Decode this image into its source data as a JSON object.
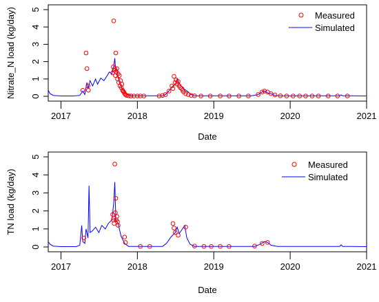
{
  "chart_data": [
    {
      "type": "line",
      "xlabel": "Date",
      "ylabel": "Nitrate_N load (kg/day)",
      "xlim": [
        "2016-11-01",
        "2021-01-01"
      ],
      "ylim": [
        0,
        5
      ],
      "x_ticks": [
        "2017",
        "2018",
        "2019",
        "2020",
        "2021"
      ],
      "y_ticks": [
        "0",
        "1",
        "2",
        "3",
        "4",
        "5"
      ],
      "legend": {
        "placement": "top-right",
        "entries": [
          "Measured",
          "Simulated"
        ]
      },
      "series": [
        {
          "name": "Simulated",
          "style": "line",
          "color": "#0000ff",
          "points": [
            [
              "2016-11-01",
              0.35
            ],
            [
              "2016-11-10",
              0.15
            ],
            [
              "2016-11-25",
              0.05
            ],
            [
              "2017-01-01",
              0.02
            ],
            [
              "2017-03-01",
              0.02
            ],
            [
              "2017-04-01",
              0.05
            ],
            [
              "2017-04-15",
              0.3
            ],
            [
              "2017-04-25",
              0.1
            ],
            [
              "2017-05-05",
              0.8
            ],
            [
              "2017-05-10",
              0.45
            ],
            [
              "2017-05-20",
              0.9
            ],
            [
              "2017-06-01",
              0.6
            ],
            [
              "2017-06-15",
              1.0
            ],
            [
              "2017-06-25",
              0.7
            ],
            [
              "2017-07-10",
              1.05
            ],
            [
              "2017-07-25",
              0.9
            ],
            [
              "2017-08-10",
              1.2
            ],
            [
              "2017-08-20",
              1.4
            ],
            [
              "2017-09-01",
              1.3
            ],
            [
              "2017-09-10",
              1.7
            ],
            [
              "2017-09-15",
              2.2
            ],
            [
              "2017-09-20",
              1.4
            ],
            [
              "2017-09-25",
              1.6
            ],
            [
              "2017-10-01",
              1.1
            ],
            [
              "2017-10-10",
              0.7
            ],
            [
              "2017-10-20",
              0.45
            ],
            [
              "2017-11-01",
              0.25
            ],
            [
              "2017-11-15",
              0.1
            ],
            [
              "2017-12-01",
              0.03
            ],
            [
              "2018-05-01",
              0.03
            ],
            [
              "2018-05-15",
              0.1
            ],
            [
              "2018-06-01",
              0.3
            ],
            [
              "2018-06-15",
              0.55
            ],
            [
              "2018-07-01",
              0.7
            ],
            [
              "2018-07-10",
              1.0
            ],
            [
              "2018-07-20",
              0.75
            ],
            [
              "2018-08-01",
              0.55
            ],
            [
              "2018-08-15",
              0.4
            ],
            [
              "2018-09-01",
              0.25
            ],
            [
              "2018-09-15",
              0.1
            ],
            [
              "2018-10-01",
              0.03
            ],
            [
              "2019-07-01",
              0.03
            ],
            [
              "2019-08-01",
              0.1
            ],
            [
              "2019-08-20",
              0.25
            ],
            [
              "2019-09-01",
              0.3
            ],
            [
              "2019-09-15",
              0.2
            ],
            [
              "2019-10-01",
              0.15
            ],
            [
              "2019-10-20",
              0.05
            ],
            [
              "2019-11-15",
              0.03
            ],
            [
              "2020-08-25",
              0.03
            ],
            [
              "2020-09-01",
              0.08
            ],
            [
              "2020-09-08",
              0.03
            ],
            [
              "2021-01-01",
              0.02
            ]
          ]
        },
        {
          "name": "Measured",
          "style": "points",
          "color": "#ff0000",
          "points": [
            [
              "2017-04-15",
              0.35
            ],
            [
              "2017-05-01",
              2.5
            ],
            [
              "2017-05-05",
              1.6
            ],
            [
              "2017-05-10",
              0.6
            ],
            [
              "2017-05-12",
              0.35
            ],
            [
              "2017-09-10",
              4.35
            ],
            [
              "2017-09-15",
              1.6
            ],
            [
              "2017-09-20",
              2.5
            ],
            [
              "2017-09-05",
              1.35
            ],
            [
              "2017-09-08",
              1.7
            ],
            [
              "2017-09-12",
              1.5
            ],
            [
              "2017-09-18",
              1.2
            ],
            [
              "2017-09-22",
              1.4
            ],
            [
              "2017-09-25",
              1.6
            ],
            [
              "2017-09-28",
              1.0
            ],
            [
              "2017-10-01",
              1.3
            ],
            [
              "2017-10-04",
              0.8
            ],
            [
              "2017-10-07",
              1.2
            ],
            [
              "2017-10-10",
              0.6
            ],
            [
              "2017-10-13",
              0.9
            ],
            [
              "2017-10-16",
              0.5
            ],
            [
              "2017-10-19",
              0.7
            ],
            [
              "2017-10-22",
              0.35
            ],
            [
              "2017-10-25",
              0.3
            ],
            [
              "2017-10-28",
              0.25
            ],
            [
              "2017-11-01",
              0.15
            ],
            [
              "2017-11-05",
              0.1
            ],
            [
              "2017-11-10",
              0.05
            ],
            [
              "2017-11-20",
              0.03
            ],
            [
              "2017-12-01",
              0.02
            ],
            [
              "2017-12-15",
              0.02
            ],
            [
              "2018-01-01",
              0.02
            ],
            [
              "2018-01-15",
              0.02
            ],
            [
              "2018-02-01",
              0.02
            ],
            [
              "2018-04-15",
              0.02
            ],
            [
              "2018-05-01",
              0.05
            ],
            [
              "2018-05-15",
              0.1
            ],
            [
              "2018-06-01",
              0.3
            ],
            [
              "2018-06-15",
              0.6
            ],
            [
              "2018-06-20",
              0.45
            ],
            [
              "2018-06-25",
              1.15
            ],
            [
              "2018-07-01",
              0.8
            ],
            [
              "2018-07-05",
              0.95
            ],
            [
              "2018-07-10",
              0.7
            ],
            [
              "2018-07-15",
              0.85
            ],
            [
              "2018-07-20",
              0.6
            ],
            [
              "2018-07-25",
              0.5
            ],
            [
              "2018-08-01",
              0.45
            ],
            [
              "2018-08-05",
              0.35
            ],
            [
              "2018-08-10",
              0.25
            ],
            [
              "2018-08-20",
              0.15
            ],
            [
              "2018-09-01",
              0.1
            ],
            [
              "2018-09-15",
              0.05
            ],
            [
              "2018-10-01",
              0.03
            ],
            [
              "2018-11-01",
              0.02
            ],
            [
              "2018-12-15",
              0.02
            ],
            [
              "2019-02-01",
              0.02
            ],
            [
              "2019-03-15",
              0.02
            ],
            [
              "2019-05-01",
              0.02
            ],
            [
              "2019-06-15",
              0.02
            ],
            [
              "2019-08-01",
              0.1
            ],
            [
              "2019-08-20",
              0.25
            ],
            [
              "2019-09-01",
              0.3
            ],
            [
              "2019-09-15",
              0.25
            ],
            [
              "2019-10-01",
              0.15
            ],
            [
              "2019-10-20",
              0.08
            ],
            [
              "2019-11-15",
              0.03
            ],
            [
              "2019-12-15",
              0.02
            ],
            [
              "2020-01-15",
              0.02
            ],
            [
              "2020-02-15",
              0.02
            ],
            [
              "2020-03-15",
              0.02
            ],
            [
              "2020-04-15",
              0.02
            ],
            [
              "2020-05-15",
              0.02
            ],
            [
              "2020-07-01",
              0.02
            ],
            [
              "2020-08-15",
              0.02
            ],
            [
              "2020-10-01",
              0.02
            ]
          ]
        }
      ]
    },
    {
      "type": "line",
      "xlabel": "Date",
      "ylabel": "TN load (kg/day)",
      "xlim": [
        "2016-11-01",
        "2021-01-01"
      ],
      "ylim": [
        0,
        5
      ],
      "x_ticks": [
        "2017",
        "2018",
        "2019",
        "2020",
        "2021"
      ],
      "y_ticks": [
        "0",
        "1",
        "2",
        "3",
        "4",
        "5"
      ],
      "legend": {
        "placement": "top-right",
        "entries": [
          "Measured",
          "Simulated"
        ]
      },
      "series": [
        {
          "name": "Simulated",
          "style": "line",
          "color": "#0000ff",
          "points": [
            [
              "2016-11-01",
              0.3
            ],
            [
              "2016-11-10",
              0.15
            ],
            [
              "2016-11-25",
              0.05
            ],
            [
              "2017-01-01",
              0.02
            ],
            [
              "2017-03-15",
              0.02
            ],
            [
              "2017-04-01",
              0.1
            ],
            [
              "2017-04-10",
              1.2
            ],
            [
              "2017-04-15",
              0.3
            ],
            [
              "2017-04-25",
              0.2
            ],
            [
              "2017-05-01",
              1.0
            ],
            [
              "2017-05-10",
              0.5
            ],
            [
              "2017-05-15",
              3.4
            ],
            [
              "2017-05-20",
              0.8
            ],
            [
              "2017-06-01",
              0.9
            ],
            [
              "2017-06-15",
              1.1
            ],
            [
              "2017-07-01",
              0.8
            ],
            [
              "2017-07-15",
              1.2
            ],
            [
              "2017-08-01",
              1.0
            ],
            [
              "2017-08-15",
              1.3
            ],
            [
              "2017-09-01",
              1.5
            ],
            [
              "2017-09-10",
              2.4
            ],
            [
              "2017-09-15",
              3.6
            ],
            [
              "2017-09-20",
              1.5
            ],
            [
              "2017-10-01",
              1.3
            ],
            [
              "2017-10-15",
              0.6
            ],
            [
              "2017-11-01",
              0.2
            ],
            [
              "2017-11-20",
              0.03
            ],
            [
              "2018-05-01",
              0.03
            ],
            [
              "2018-05-20",
              0.2
            ],
            [
              "2018-06-10",
              0.55
            ],
            [
              "2018-07-01",
              0.8
            ],
            [
              "2018-07-10",
              1.1
            ],
            [
              "2018-07-20",
              0.75
            ],
            [
              "2018-08-01",
              0.95
            ],
            [
              "2018-08-15",
              1.2
            ],
            [
              "2018-08-25",
              0.5
            ],
            [
              "2018-09-10",
              0.15
            ],
            [
              "2018-10-01",
              0.03
            ],
            [
              "2019-07-15",
              0.03
            ],
            [
              "2019-08-10",
              0.15
            ],
            [
              "2019-09-01",
              0.3
            ],
            [
              "2019-09-15",
              0.25
            ],
            [
              "2019-10-01",
              0.1
            ],
            [
              "2019-11-01",
              0.03
            ],
            [
              "2020-08-25",
              0.03
            ],
            [
              "2020-09-01",
              0.12
            ],
            [
              "2020-09-08",
              0.03
            ],
            [
              "2021-01-01",
              0.02
            ]
          ]
        },
        {
          "name": "Measured",
          "style": "points",
          "color": "#ff0000",
          "points": [
            [
              "2017-04-20",
              0.5
            ],
            [
              "2017-09-05",
              1.8
            ],
            [
              "2017-09-08",
              1.5
            ],
            [
              "2017-09-10",
              1.6
            ],
            [
              "2017-09-12",
              1.3
            ],
            [
              "2017-09-15",
              4.6
            ],
            [
              "2017-09-18",
              1.9
            ],
            [
              "2017-09-20",
              2.7
            ],
            [
              "2017-09-22",
              1.5
            ],
            [
              "2017-09-25",
              1.7
            ],
            [
              "2017-09-28",
              1.4
            ],
            [
              "2017-10-01",
              1.2
            ],
            [
              "2017-11-01",
              0.55
            ],
            [
              "2017-11-05",
              0.25
            ],
            [
              "2018-01-15",
              0.03
            ],
            [
              "2018-03-01",
              0.03
            ],
            [
              "2018-06-20",
              1.3
            ],
            [
              "2018-06-25",
              1.05
            ],
            [
              "2018-07-01",
              0.8
            ],
            [
              "2018-07-15",
              0.65
            ],
            [
              "2018-08-20",
              1.1
            ],
            [
              "2018-10-01",
              0.05
            ],
            [
              "2018-11-15",
              0.03
            ],
            [
              "2018-12-20",
              0.03
            ],
            [
              "2019-02-01",
              0.03
            ],
            [
              "2019-03-15",
              0.03
            ],
            [
              "2019-07-15",
              0.05
            ],
            [
              "2019-08-20",
              0.2
            ],
            [
              "2019-09-15",
              0.25
            ]
          ]
        }
      ]
    }
  ]
}
